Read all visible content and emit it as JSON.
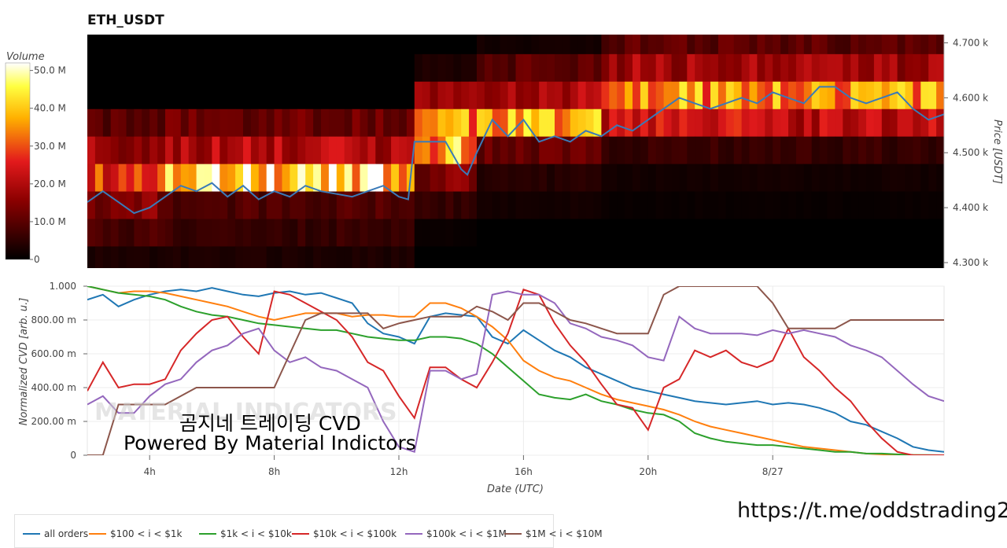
{
  "chart_title": "ETH_USDT",
  "watermark": "MATERIAL INDICATORS",
  "overlay_text": {
    "line1": "곰지네 트레이딩 CVD",
    "line2": "Powered By Material Indictors"
  },
  "link": "https://t.me/oddstrading2",
  "chart_data": [
    {
      "type": "heatmap",
      "colorbar": {
        "label": "Volume",
        "ticks": [
          "50.0 M",
          "40.0 M",
          "30.0 M",
          "20.0 M",
          "10.0 M",
          "0"
        ],
        "range": [
          0,
          52
        ]
      },
      "y_axis": {
        "label": "Price [USDT]",
        "ticks": [
          "4.700 k",
          "4.600 k",
          "4.500 k",
          "4.400 k",
          "4.300 k"
        ],
        "range": [
          4290,
          4715
        ]
      },
      "x_range_hours": [
        2,
        29.5
      ],
      "price_bins": [
        4305,
        4355,
        4405,
        4455,
        4505,
        4555,
        4605,
        4655,
        4705
      ],
      "segments": [
        {
          "x_start": 2,
          "x_end": 4.5,
          "levels": [
            3,
            8,
            14,
            28,
            18,
            10,
            0,
            0,
            0
          ]
        },
        {
          "x_start": 4.5,
          "x_end": 12.5,
          "levels": [
            3,
            6,
            9,
            42,
            20,
            12,
            0,
            0,
            0
          ]
        },
        {
          "x_start": 12.5,
          "x_end": 14.5,
          "levels": [
            0,
            1,
            6,
            14,
            38,
            34,
            16,
            3,
            0
          ]
        },
        {
          "x_start": 14.5,
          "x_end": 18.5,
          "levels": [
            0,
            0,
            2,
            4,
            12,
            36,
            20,
            10,
            2
          ]
        },
        {
          "x_start": 18.5,
          "x_end": 29.5,
          "levels": [
            0,
            0,
            1,
            2,
            6,
            22,
            34,
            18,
            10
          ]
        }
      ],
      "price_series": {
        "name": "price",
        "x": [
          2,
          2.5,
          3,
          3.5,
          4,
          4.5,
          5,
          5.5,
          6,
          6.5,
          7,
          7.5,
          8,
          8.5,
          9,
          9.5,
          10,
          10.5,
          11,
          11.5,
          12,
          12.3,
          12.5,
          13,
          13.5,
          14,
          14.2,
          14.5,
          15,
          15.5,
          16,
          16.5,
          17,
          17.5,
          18,
          18.5,
          19,
          19.5,
          20,
          20.5,
          21,
          21.5,
          22,
          22.5,
          23,
          23.5,
          24,
          24.5,
          25,
          25.5,
          26,
          26.5,
          27,
          27.5,
          28,
          28.5,
          29,
          29.5
        ],
        "y": [
          4410,
          4430,
          4410,
          4390,
          4400,
          4420,
          4440,
          4430,
          4445,
          4420,
          4440,
          4415,
          4430,
          4420,
          4440,
          4430,
          4425,
          4420,
          4430,
          4440,
          4420,
          4415,
          4520,
          4520,
          4520,
          4470,
          4460,
          4500,
          4560,
          4530,
          4560,
          4520,
          4530,
          4520,
          4540,
          4530,
          4550,
          4540,
          4560,
          4580,
          4600,
          4590,
          4580,
          4590,
          4600,
          4590,
          4610,
          4600,
          4590,
          4620,
          4620,
          4600,
          4590,
          4600,
          4610,
          4580,
          4560,
          4570
        ]
      }
    },
    {
      "type": "line",
      "x_label": "Date (UTC)",
      "y_label": "Normalized CVD [arb. u.]",
      "x_ticks": [
        {
          "value": 4,
          "label": "4h"
        },
        {
          "value": 8,
          "label": "8h"
        },
        {
          "value": 12,
          "label": "12h"
        },
        {
          "value": 16,
          "label": "16h"
        },
        {
          "value": 20,
          "label": "20h"
        },
        {
          "value": 24,
          "label": "8/27"
        }
      ],
      "y_ticks": [
        "1.000",
        "800.00 m",
        "600.00 m",
        "400.00 m",
        "200.00 m",
        "0"
      ],
      "x_range_hours": [
        2,
        29.5
      ],
      "y_range": [
        0,
        1
      ],
      "legend_position": "bottom-left",
      "x": [
        2,
        2.5,
        3,
        3.5,
        4,
        4.5,
        5,
        5.5,
        6,
        6.5,
        7,
        7.5,
        8,
        8.5,
        9,
        9.5,
        10,
        10.5,
        11,
        11.5,
        12,
        12.5,
        13,
        13.5,
        14,
        14.5,
        15,
        15.5,
        16,
        16.5,
        17,
        17.5,
        18,
        18.5,
        19,
        19.5,
        20,
        20.5,
        21,
        21.5,
        22,
        22.5,
        23,
        23.5,
        24,
        24.5,
        25,
        25.5,
        26,
        26.5,
        27,
        27.5,
        28,
        28.5,
        29,
        29.5
      ],
      "series": [
        {
          "name": "all orders",
          "color": "#1f77b4",
          "values": [
            0.92,
            0.95,
            0.88,
            0.92,
            0.95,
            0.97,
            0.98,
            0.97,
            0.99,
            0.97,
            0.95,
            0.94,
            0.96,
            0.97,
            0.95,
            0.96,
            0.93,
            0.9,
            0.78,
            0.72,
            0.7,
            0.66,
            0.82,
            0.84,
            0.83,
            0.82,
            0.7,
            0.66,
            0.74,
            0.68,
            0.62,
            0.58,
            0.52,
            0.48,
            0.44,
            0.4,
            0.38,
            0.36,
            0.34,
            0.32,
            0.31,
            0.3,
            0.31,
            0.32,
            0.3,
            0.31,
            0.3,
            0.28,
            0.25,
            0.2,
            0.18,
            0.14,
            0.1,
            0.05,
            0.03,
            0.02
          ]
        },
        {
          "name": "$100 < i < $1k",
          "color": "#ff7f0e",
          "values": [
            1.0,
            0.98,
            0.96,
            0.97,
            0.97,
            0.96,
            0.94,
            0.92,
            0.9,
            0.88,
            0.85,
            0.82,
            0.8,
            0.82,
            0.84,
            0.84,
            0.84,
            0.82,
            0.83,
            0.83,
            0.82,
            0.82,
            0.9,
            0.9,
            0.87,
            0.82,
            0.76,
            0.68,
            0.56,
            0.5,
            0.46,
            0.44,
            0.4,
            0.36,
            0.33,
            0.31,
            0.29,
            0.27,
            0.24,
            0.2,
            0.17,
            0.15,
            0.13,
            0.11,
            0.09,
            0.07,
            0.05,
            0.04,
            0.03,
            0.02,
            0.01,
            0.005,
            0.002,
            0.001,
            0.0,
            0.0
          ]
        },
        {
          "name": "$1k < i < $10k",
          "color": "#2ca02c",
          "values": [
            1.0,
            0.98,
            0.96,
            0.95,
            0.94,
            0.92,
            0.88,
            0.85,
            0.83,
            0.82,
            0.8,
            0.78,
            0.77,
            0.76,
            0.75,
            0.74,
            0.74,
            0.72,
            0.7,
            0.69,
            0.68,
            0.68,
            0.7,
            0.7,
            0.69,
            0.66,
            0.6,
            0.52,
            0.44,
            0.36,
            0.34,
            0.33,
            0.36,
            0.32,
            0.3,
            0.27,
            0.25,
            0.24,
            0.2,
            0.13,
            0.1,
            0.08,
            0.07,
            0.06,
            0.06,
            0.05,
            0.04,
            0.03,
            0.02,
            0.02,
            0.01,
            0.01,
            0.005,
            0.002,
            0.001,
            0.0
          ]
        },
        {
          "name": "$10k < i < $100k",
          "color": "#d62728",
          "values": [
            0.38,
            0.55,
            0.4,
            0.42,
            0.42,
            0.45,
            0.62,
            0.72,
            0.8,
            0.82,
            0.7,
            0.6,
            0.97,
            0.95,
            0.9,
            0.85,
            0.8,
            0.7,
            0.55,
            0.5,
            0.35,
            0.22,
            0.52,
            0.52,
            0.45,
            0.4,
            0.55,
            0.72,
            0.98,
            0.95,
            0.78,
            0.65,
            0.55,
            0.42,
            0.3,
            0.28,
            0.15,
            0.4,
            0.45,
            0.62,
            0.58,
            0.62,
            0.55,
            0.52,
            0.56,
            0.75,
            0.58,
            0.5,
            0.4,
            0.32,
            0.2,
            0.1,
            0.02,
            0.0,
            0.0,
            0.0
          ]
        },
        {
          "name": "$100k < i < $1M",
          "color": "#9467bd",
          "values": [
            0.3,
            0.35,
            0.25,
            0.25,
            0.35,
            0.42,
            0.45,
            0.55,
            0.62,
            0.65,
            0.72,
            0.75,
            0.62,
            0.55,
            0.58,
            0.52,
            0.5,
            0.45,
            0.4,
            0.2,
            0.05,
            0.02,
            0.5,
            0.5,
            0.45,
            0.48,
            0.95,
            0.97,
            0.95,
            0.95,
            0.9,
            0.78,
            0.75,
            0.7,
            0.68,
            0.65,
            0.58,
            0.56,
            0.82,
            0.75,
            0.72,
            0.72,
            0.72,
            0.71,
            0.74,
            0.72,
            0.74,
            0.72,
            0.7,
            0.65,
            0.62,
            0.58,
            0.5,
            0.42,
            0.35,
            0.32
          ]
        },
        {
          "name": "$1M < i < $10M",
          "color": "#8c564b",
          "values": [
            0.0,
            0.0,
            0.3,
            0.3,
            0.3,
            0.3,
            0.35,
            0.4,
            0.4,
            0.4,
            0.4,
            0.4,
            0.4,
            0.6,
            0.8,
            0.84,
            0.84,
            0.84,
            0.84,
            0.75,
            0.78,
            0.8,
            0.82,
            0.82,
            0.82,
            0.88,
            0.85,
            0.8,
            0.9,
            0.9,
            0.85,
            0.8,
            0.78,
            0.75,
            0.72,
            0.72,
            0.72,
            0.95,
            1.0,
            1.0,
            1.0,
            1.0,
            1.0,
            1.0,
            0.9,
            0.75,
            0.75,
            0.75,
            0.75,
            0.8,
            0.8,
            0.8,
            0.8,
            0.8,
            0.8,
            0.8
          ]
        }
      ]
    }
  ]
}
